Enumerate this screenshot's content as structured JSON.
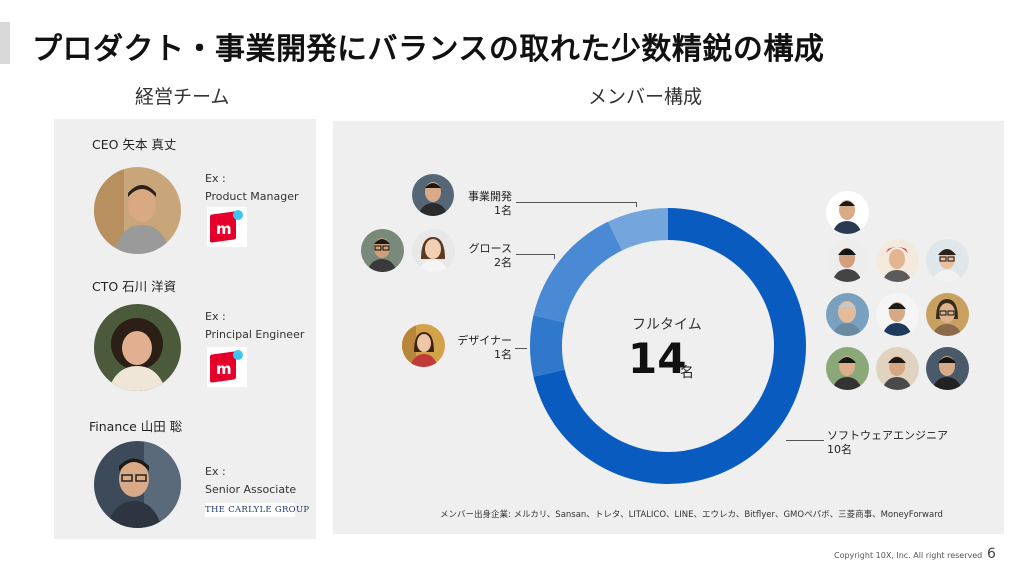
{
  "slide": {
    "title": "プロダクト・事業開発にバランスの取れた少数精鋭の構成",
    "left_heading": "経営チーム",
    "right_heading": "メンバー構成",
    "page_number": "6",
    "copyright": "Copyright 10X, Inc. All right reserved"
  },
  "executives": [
    {
      "name": "CEO 矢本 真丈",
      "ex_prefix": "Ex :",
      "ex_role": "Product Manager",
      "logo": "mercari-logo-icon"
    },
    {
      "name": "CTO 石川 洋資",
      "ex_prefix": "Ex :",
      "ex_role": "Principal Engineer",
      "logo": "mercari-logo-icon"
    },
    {
      "name": "Finance 山田 聡",
      "ex_prefix": "Ex :",
      "ex_role": "Senior Associate",
      "logo": "carlyle-logo",
      "logo_text": "THE CARLYLE GROUP"
    }
  ],
  "composition": {
    "center_label": "フルタイム",
    "total": "14",
    "total_unit": "名",
    "segments": [
      {
        "label": "ソフトウェアエンジニア",
        "count": "10名",
        "value": 10,
        "color": "#0a5bbf"
      },
      {
        "label": "デザイナー",
        "count": "1名",
        "value": 1,
        "color": "#2f78cc"
      },
      {
        "label": "グロース",
        "count": "2名",
        "value": 2,
        "color": "#4a8ad4"
      },
      {
        "label": "事業開発",
        "count": "1名",
        "value": 1,
        "color": "#74a6dd"
      }
    ],
    "origins_note": "メンバー出身企業: メルカリ、Sansan、トレタ、LITALICO、LINE、エウレカ、Bitflyer、GMOペパボ、三菱商事、MoneyForward"
  },
  "colors": {
    "panel_bg": "#efefef",
    "accent_gray": "#d9d9d9"
  }
}
